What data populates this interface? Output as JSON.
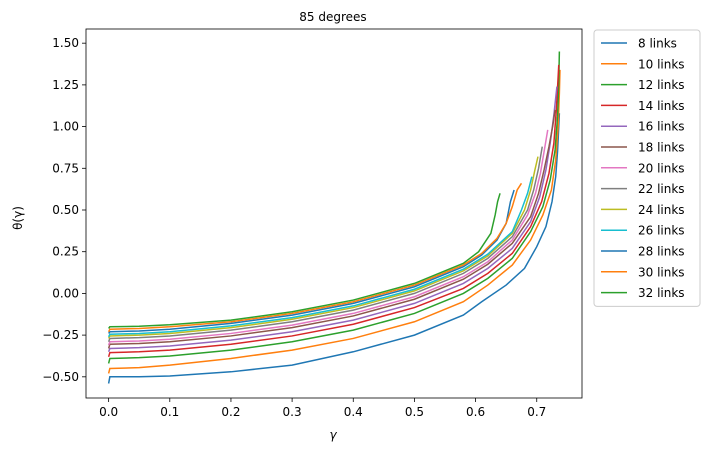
{
  "chart_data": {
    "type": "line",
    "title": "85 degrees",
    "xlabel": "γ",
    "ylabel": "θ(γ)",
    "xlim": [
      -0.037,
      0.774
    ],
    "ylim": [
      -0.627,
      1.585
    ],
    "xticks": [
      0.0,
      0.1,
      0.2,
      0.3,
      0.4,
      0.5,
      0.6,
      0.7
    ],
    "xtick_labels": [
      "0.0",
      "0.1",
      "0.2",
      "0.3",
      "0.4",
      "0.5",
      "0.6",
      "0.7"
    ],
    "yticks": [
      -0.5,
      -0.25,
      0.0,
      0.25,
      0.5,
      0.75,
      1.0,
      1.25,
      1.5
    ],
    "ytick_labels": [
      "−0.50",
      "−0.25",
      "0.00",
      "0.25",
      "0.50",
      "0.75",
      "1.00",
      "1.25",
      "1.50"
    ],
    "grid": false,
    "legend_position": "outside-upper-right",
    "series": [
      {
        "name": "8 links",
        "color": "#1f77b4",
        "points": [
          [
            0,
            -0.54
          ],
          [
            0.002,
            -0.5
          ],
          [
            0.05,
            -0.5
          ],
          [
            0.1,
            -0.495
          ],
          [
            0.2,
            -0.47
          ],
          [
            0.3,
            -0.43
          ],
          [
            0.4,
            -0.35
          ],
          [
            0.5,
            -0.25
          ],
          [
            0.58,
            -0.13
          ],
          [
            0.61,
            -0.05
          ],
          [
            0.65,
            0.05
          ],
          [
            0.68,
            0.15
          ],
          [
            0.7,
            0.28
          ],
          [
            0.715,
            0.4
          ],
          [
            0.725,
            0.55
          ],
          [
            0.731,
            0.7
          ],
          [
            0.734,
            0.85
          ],
          [
            0.736,
            1.0
          ],
          [
            0.737,
            1.08
          ]
        ]
      },
      {
        "name": "10 links",
        "color": "#ff7f0e",
        "points": [
          [
            0,
            -0.48
          ],
          [
            0.002,
            -0.45
          ],
          [
            0.05,
            -0.445
          ],
          [
            0.1,
            -0.43
          ],
          [
            0.2,
            -0.39
          ],
          [
            0.3,
            -0.34
          ],
          [
            0.4,
            -0.27
          ],
          [
            0.5,
            -0.17
          ],
          [
            0.58,
            -0.05
          ],
          [
            0.62,
            0.05
          ],
          [
            0.66,
            0.17
          ],
          [
            0.69,
            0.32
          ],
          [
            0.71,
            0.47
          ],
          [
            0.724,
            0.62
          ],
          [
            0.731,
            0.8
          ],
          [
            0.735,
            1.0
          ],
          [
            0.737,
            1.2
          ],
          [
            0.738,
            1.34
          ]
        ]
      },
      {
        "name": "12 links",
        "color": "#2ca02c",
        "points": [
          [
            0,
            -0.42
          ],
          [
            0.002,
            -0.39
          ],
          [
            0.05,
            -0.385
          ],
          [
            0.1,
            -0.375
          ],
          [
            0.2,
            -0.34
          ],
          [
            0.3,
            -0.29
          ],
          [
            0.4,
            -0.22
          ],
          [
            0.5,
            -0.12
          ],
          [
            0.58,
            0.0
          ],
          [
            0.62,
            0.09
          ],
          [
            0.66,
            0.21
          ],
          [
            0.69,
            0.37
          ],
          [
            0.71,
            0.52
          ],
          [
            0.722,
            0.68
          ],
          [
            0.73,
            0.86
          ],
          [
            0.734,
            1.06
          ],
          [
            0.736,
            1.26
          ],
          [
            0.737,
            1.45
          ]
        ]
      },
      {
        "name": "14 links",
        "color": "#d62728",
        "points": [
          [
            0,
            -0.38
          ],
          [
            0.002,
            -0.355
          ],
          [
            0.05,
            -0.35
          ],
          [
            0.1,
            -0.34
          ],
          [
            0.2,
            -0.305
          ],
          [
            0.3,
            -0.255
          ],
          [
            0.4,
            -0.185
          ],
          [
            0.5,
            -0.085
          ],
          [
            0.58,
            0.03
          ],
          [
            0.62,
            0.12
          ],
          [
            0.66,
            0.24
          ],
          [
            0.69,
            0.4
          ],
          [
            0.708,
            0.55
          ],
          [
            0.72,
            0.72
          ],
          [
            0.728,
            0.9
          ],
          [
            0.732,
            1.1
          ],
          [
            0.735,
            1.3
          ],
          [
            0.736,
            1.37
          ]
        ]
      },
      {
        "name": "16 links",
        "color": "#9467bd",
        "points": [
          [
            0,
            -0.35
          ],
          [
            0.002,
            -0.33
          ],
          [
            0.05,
            -0.325
          ],
          [
            0.1,
            -0.315
          ],
          [
            0.2,
            -0.28
          ],
          [
            0.3,
            -0.23
          ],
          [
            0.4,
            -0.16
          ],
          [
            0.5,
            -0.06
          ],
          [
            0.58,
            0.06
          ],
          [
            0.62,
            0.15
          ],
          [
            0.66,
            0.27
          ],
          [
            0.69,
            0.43
          ],
          [
            0.705,
            0.58
          ],
          [
            0.715,
            0.74
          ],
          [
            0.722,
            0.9
          ],
          [
            0.728,
            1.07
          ],
          [
            0.733,
            1.24
          ]
        ]
      },
      {
        "name": "18 links",
        "color": "#8c564b",
        "points": [
          [
            0,
            -0.33
          ],
          [
            0.002,
            -0.305
          ],
          [
            0.05,
            -0.3
          ],
          [
            0.1,
            -0.29
          ],
          [
            0.2,
            -0.255
          ],
          [
            0.3,
            -0.205
          ],
          [
            0.4,
            -0.135
          ],
          [
            0.5,
            -0.035
          ],
          [
            0.58,
            0.085
          ],
          [
            0.62,
            0.175
          ],
          [
            0.66,
            0.3
          ],
          [
            0.69,
            0.46
          ],
          [
            0.703,
            0.6
          ],
          [
            0.712,
            0.74
          ],
          [
            0.72,
            0.88
          ],
          [
            0.726,
            1.0
          ],
          [
            0.73,
            1.1
          ]
        ]
      },
      {
        "name": "20 links",
        "color": "#e377c2",
        "points": [
          [
            0,
            -0.31
          ],
          [
            0.002,
            -0.29
          ],
          [
            0.05,
            -0.285
          ],
          [
            0.1,
            -0.275
          ],
          [
            0.2,
            -0.24
          ],
          [
            0.3,
            -0.19
          ],
          [
            0.4,
            -0.12
          ],
          [
            0.5,
            -0.02
          ],
          [
            0.58,
            0.1
          ],
          [
            0.62,
            0.19
          ],
          [
            0.66,
            0.32
          ],
          [
            0.685,
            0.47
          ],
          [
            0.698,
            0.6
          ],
          [
            0.706,
            0.72
          ],
          [
            0.712,
            0.85
          ],
          [
            0.718,
            0.98
          ]
        ]
      },
      {
        "name": "22 links",
        "color": "#7f7f7f",
        "points": [
          [
            0,
            -0.29
          ],
          [
            0.002,
            -0.27
          ],
          [
            0.05,
            -0.265
          ],
          [
            0.1,
            -0.255
          ],
          [
            0.2,
            -0.22
          ],
          [
            0.3,
            -0.17
          ],
          [
            0.4,
            -0.1
          ],
          [
            0.5,
            0.0
          ],
          [
            0.58,
            0.12
          ],
          [
            0.62,
            0.21
          ],
          [
            0.66,
            0.34
          ],
          [
            0.685,
            0.5
          ],
          [
            0.695,
            0.62
          ],
          [
            0.703,
            0.75
          ],
          [
            0.709,
            0.88
          ]
        ]
      },
      {
        "name": "24 links",
        "color": "#bcbd22",
        "points": [
          [
            0,
            -0.27
          ],
          [
            0.002,
            -0.255
          ],
          [
            0.05,
            -0.25
          ],
          [
            0.1,
            -0.24
          ],
          [
            0.2,
            -0.205
          ],
          [
            0.3,
            -0.155
          ],
          [
            0.4,
            -0.085
          ],
          [
            0.5,
            0.015
          ],
          [
            0.58,
            0.135
          ],
          [
            0.62,
            0.225
          ],
          [
            0.66,
            0.36
          ],
          [
            0.68,
            0.5
          ],
          [
            0.69,
            0.62
          ],
          [
            0.697,
            0.74
          ],
          [
            0.702,
            0.82
          ]
        ]
      },
      {
        "name": "26 links",
        "color": "#17becf",
        "points": [
          [
            0,
            -0.26
          ],
          [
            0.002,
            -0.245
          ],
          [
            0.05,
            -0.24
          ],
          [
            0.1,
            -0.23
          ],
          [
            0.2,
            -0.195
          ],
          [
            0.3,
            -0.145
          ],
          [
            0.4,
            -0.075
          ],
          [
            0.5,
            0.025
          ],
          [
            0.58,
            0.145
          ],
          [
            0.62,
            0.235
          ],
          [
            0.66,
            0.37
          ],
          [
            0.675,
            0.5
          ],
          [
            0.685,
            0.6
          ],
          [
            0.692,
            0.7
          ]
        ]
      },
      {
        "name": "28 links",
        "color": "#1f77b4",
        "points": [
          [
            0,
            -0.24
          ],
          [
            0.002,
            -0.23
          ],
          [
            0.05,
            -0.225
          ],
          [
            0.1,
            -0.215
          ],
          [
            0.2,
            -0.18
          ],
          [
            0.3,
            -0.13
          ],
          [
            0.4,
            -0.06
          ],
          [
            0.5,
            0.04
          ],
          [
            0.58,
            0.16
          ],
          [
            0.61,
            0.23
          ],
          [
            0.635,
            0.32
          ],
          [
            0.65,
            0.42
          ],
          [
            0.657,
            0.55
          ],
          [
            0.663,
            0.62
          ]
        ]
      },
      {
        "name": "30 links",
        "color": "#ff7f0e",
        "points": [
          [
            0,
            -0.23
          ],
          [
            0.002,
            -0.215
          ],
          [
            0.05,
            -0.21
          ],
          [
            0.1,
            -0.2
          ],
          [
            0.2,
            -0.17
          ],
          [
            0.3,
            -0.12
          ],
          [
            0.4,
            -0.05
          ],
          [
            0.5,
            0.05
          ],
          [
            0.58,
            0.17
          ],
          [
            0.61,
            0.24
          ],
          [
            0.635,
            0.33
          ],
          [
            0.65,
            0.42
          ],
          [
            0.66,
            0.52
          ],
          [
            0.668,
            0.62
          ],
          [
            0.675,
            0.66
          ]
        ]
      },
      {
        "name": "32 links",
        "color": "#2ca02c",
        "points": [
          [
            0,
            -0.21
          ],
          [
            0.002,
            -0.2
          ],
          [
            0.05,
            -0.197
          ],
          [
            0.1,
            -0.188
          ],
          [
            0.2,
            -0.16
          ],
          [
            0.3,
            -0.11
          ],
          [
            0.4,
            -0.04
          ],
          [
            0.5,
            0.06
          ],
          [
            0.58,
            0.18
          ],
          [
            0.605,
            0.25
          ],
          [
            0.625,
            0.36
          ],
          [
            0.632,
            0.47
          ],
          [
            0.636,
            0.55
          ],
          [
            0.64,
            0.6
          ]
        ]
      }
    ]
  }
}
